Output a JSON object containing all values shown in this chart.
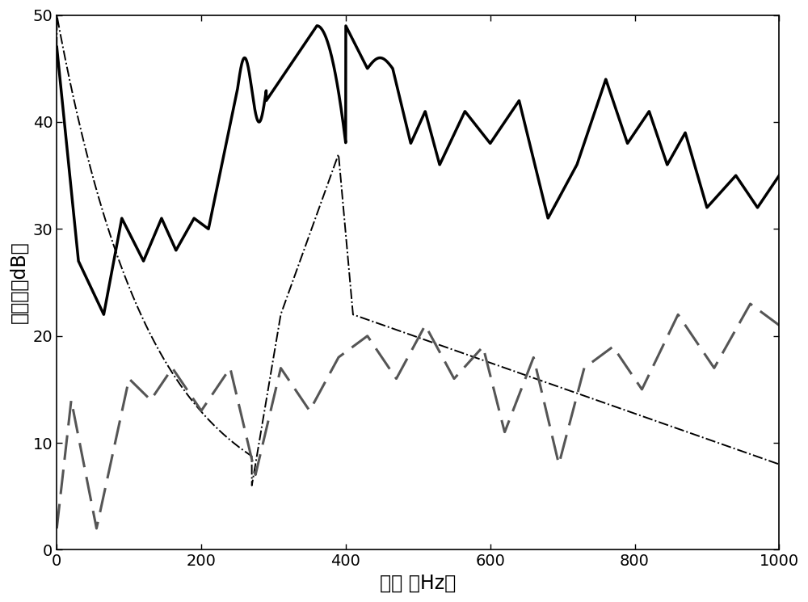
{
  "title": "",
  "xlabel": "频率 （Hz）",
  "ylabel": "隔声量（dB）",
  "xlim": [
    0,
    1000
  ],
  "ylim": [
    0,
    50
  ],
  "xticks": [
    0,
    200,
    400,
    600,
    800,
    1000
  ],
  "yticks": [
    0,
    10,
    20,
    30,
    40,
    50
  ],
  "xlabel_fontsize": 17,
  "ylabel_fontsize": 17,
  "tick_fontsize": 14,
  "background_color": "#ffffff",
  "solid_color": "#000000",
  "dashdot_color": "#000000",
  "dashed_color": "#555555",
  "solid_linewidth": 2.5,
  "dashdot_linewidth": 1.4,
  "dashed_linewidth": 2.2
}
